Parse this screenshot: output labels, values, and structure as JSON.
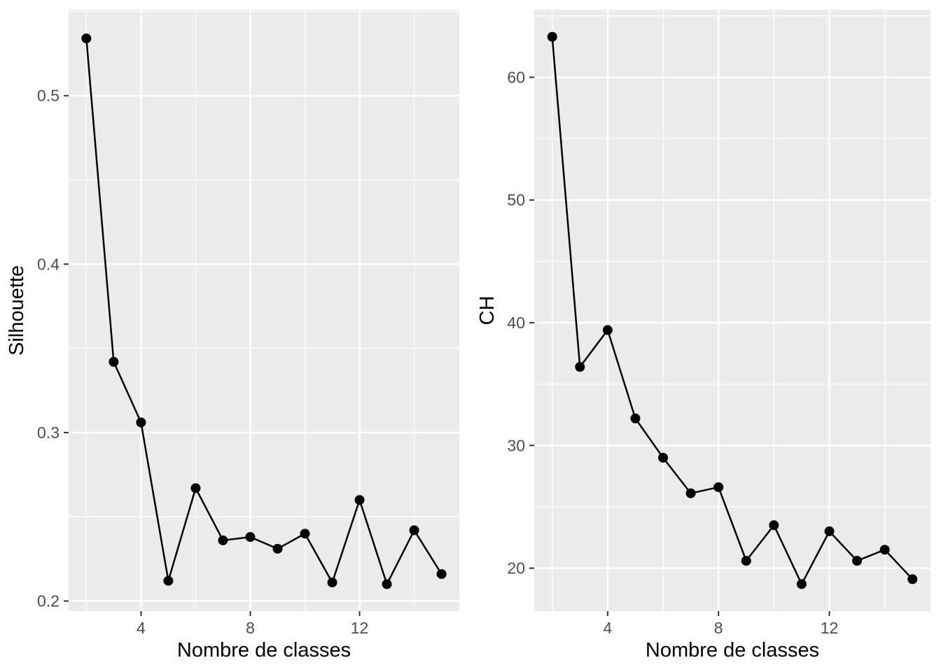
{
  "figure": {
    "background": "#FFFFFF",
    "panel_background": "#EBEBEB",
    "grid_color": "#FFFFFF",
    "line_color": "#000000",
    "point_color": "#000000",
    "tick_label_color": "#4D4D4D",
    "axis_title_color": "#000000",
    "tick_mark_color": "#333333"
  },
  "chart_data": [
    {
      "type": "line",
      "title": "",
      "xlabel": "Nombre de classes",
      "ylabel": "Silhouette",
      "x": [
        2,
        3,
        4,
        5,
        6,
        7,
        8,
        9,
        10,
        11,
        12,
        13,
        14,
        15
      ],
      "y": [
        0.534,
        0.342,
        0.306,
        0.212,
        0.267,
        0.236,
        0.238,
        0.231,
        0.24,
        0.211,
        0.26,
        0.21,
        0.242,
        0.216
      ],
      "xlim": [
        1.35,
        15.65
      ],
      "ylim": [
        0.194,
        0.551
      ],
      "xticks": [
        4,
        8,
        12
      ],
      "xtick_labels": [
        "4",
        "8",
        "12"
      ],
      "xminor": [
        2,
        6,
        10,
        14
      ],
      "yticks": [
        0.2,
        0.3,
        0.4,
        0.5
      ],
      "ytick_labels": [
        "0.2",
        "0.3",
        "0.4",
        "0.5"
      ],
      "yminor": [
        0.25,
        0.35,
        0.45,
        0.55
      ],
      "grid": true,
      "legend": "none",
      "marker": "point"
    },
    {
      "type": "line",
      "title": "",
      "xlabel": "Nombre de classes",
      "ylabel": "CH",
      "x": [
        2,
        3,
        4,
        5,
        6,
        7,
        8,
        9,
        10,
        11,
        12,
        13,
        14,
        15
      ],
      "y": [
        63.3,
        36.4,
        39.4,
        32.2,
        29.0,
        26.1,
        26.6,
        20.6,
        23.5,
        18.7,
        23.0,
        20.6,
        21.5,
        19.1
      ],
      "xlim": [
        1.35,
        15.65
      ],
      "ylim": [
        16.5,
        65.5
      ],
      "xticks": [
        4,
        8,
        12
      ],
      "xtick_labels": [
        "4",
        "8",
        "12"
      ],
      "xminor": [
        2,
        6,
        10,
        14
      ],
      "yticks": [
        20,
        30,
        40,
        50,
        60
      ],
      "ytick_labels": [
        "20",
        "30",
        "40",
        "50",
        "60"
      ],
      "yminor": [
        25,
        35,
        45,
        55,
        65
      ],
      "grid": true,
      "legend": "none",
      "marker": "point"
    }
  ]
}
